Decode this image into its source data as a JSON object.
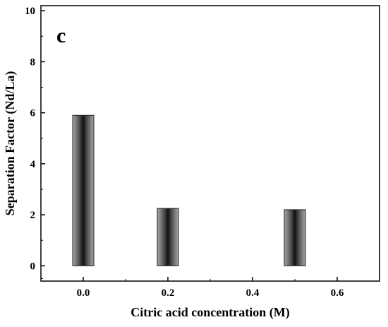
{
  "chart_data": {
    "type": "bar",
    "panel_label": "c",
    "title": "",
    "xlabel": "Citric acid concentration (M)",
    "ylabel": "Separation Factor (Nd/La)",
    "xlim": [
      -0.1,
      0.7
    ],
    "ylim": [
      -0.6,
      10.2
    ],
    "x_ticks": [
      "0.0",
      "0.2",
      "0.4",
      "0.6"
    ],
    "y_ticks": [
      "0",
      "2",
      "4",
      "6",
      "8",
      "10"
    ],
    "x": [
      0.0,
      0.2,
      0.5
    ],
    "values": [
      5.9,
      2.25,
      2.2
    ],
    "bar_color": "#222222",
    "grid": false,
    "legend": "none"
  }
}
